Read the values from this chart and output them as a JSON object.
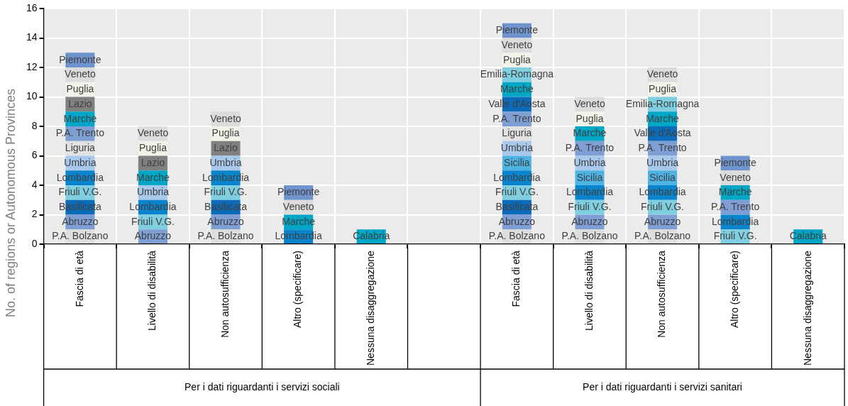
{
  "chart_data": {
    "type": "bar",
    "stacked": true,
    "ylabel": "No. of regions or Autonomous Provinces",
    "categories": [
      "Fascia di età",
      "Livello di disabilità",
      "Non autosufficienza",
      "Altro (specificare)",
      "Nessuna disaggregazione",
      null,
      "Fascia di età",
      "Livello di disabilità",
      "Non autosufficienza",
      "Altro (specificare)",
      "Nessuna disaggregazione"
    ],
    "ylim": [
      0,
      16
    ],
    "yticks": [
      0,
      2,
      4,
      6,
      8,
      10,
      12,
      14,
      16
    ],
    "grid": true,
    "legend": false,
    "annotations": [
      "Per i dati riguardanti i servizi sociali",
      "Per i dati riguardanti i servizi sanitari"
    ],
    "series": [
      {
        "name": "P.A. Bolzano",
        "color": "#dedede",
        "values": [
          1,
          null,
          1,
          null,
          null,
          null,
          1,
          1,
          1,
          null,
          null
        ]
      },
      {
        "name": "Abruzzo",
        "color": "#7f9fd4",
        "values": [
          1,
          1,
          1,
          null,
          null,
          null,
          1,
          1,
          1,
          null,
          null
        ]
      },
      {
        "name": "Basilicata",
        "color": "#0b6bb8",
        "values": [
          1,
          null,
          1,
          null,
          null,
          null,
          1,
          null,
          null,
          null,
          null
        ]
      },
      {
        "name": "Friuli V.G.",
        "color": "#7fcfe0",
        "values": [
          1,
          1,
          1,
          null,
          null,
          null,
          1,
          1,
          1,
          1,
          null
        ]
      },
      {
        "name": "Lombardia",
        "color": "#0a84cc",
        "values": [
          1,
          1,
          1,
          1,
          null,
          null,
          1,
          1,
          1,
          1,
          null
        ]
      },
      {
        "name": "Sicilia",
        "color": "#4cb3e3",
        "values": [
          null,
          null,
          null,
          null,
          null,
          null,
          1,
          1,
          1,
          null,
          null
        ]
      },
      {
        "name": "Umbria",
        "color": "#a8c8ec",
        "values": [
          1,
          1,
          1,
          null,
          null,
          null,
          1,
          1,
          1,
          null,
          null
        ]
      },
      {
        "name": "Liguria",
        "color": "#e2e2e2",
        "values": [
          1,
          null,
          null,
          null,
          null,
          null,
          1,
          null,
          null,
          null,
          null
        ]
      },
      {
        "name": "P.A. Trento",
        "color": "#7f9fd4",
        "values": [
          1,
          null,
          null,
          null,
          null,
          null,
          1,
          1,
          1,
          1,
          null
        ]
      },
      {
        "name": "Valle d'Aosta",
        "color": "#0b6bb8",
        "values": [
          null,
          null,
          null,
          null,
          null,
          null,
          1,
          null,
          1,
          null,
          null
        ]
      },
      {
        "name": "Marche",
        "color": "#00a6c6",
        "values": [
          1,
          1,
          null,
          1,
          null,
          null,
          1,
          1,
          1,
          1,
          null
        ]
      },
      {
        "name": "Emilia-Romagna",
        "color": "#7fcfe0",
        "values": [
          null,
          null,
          null,
          null,
          null,
          null,
          1,
          null,
          1,
          null,
          null
        ]
      },
      {
        "name": "Lazio",
        "color": "#808080",
        "values": [
          1,
          1,
          1,
          null,
          null,
          null,
          null,
          null,
          null,
          null,
          null
        ]
      },
      {
        "name": "Puglia",
        "color": "#f3f3ea",
        "values": [
          1,
          1,
          1,
          null,
          null,
          null,
          1,
          1,
          1,
          null,
          null
        ]
      },
      {
        "name": "Veneto",
        "color": "#dcdcdc",
        "values": [
          1,
          1,
          1,
          1,
          null,
          null,
          1,
          1,
          1,
          1,
          null
        ]
      },
      {
        "name": "Piemonte",
        "color": "#6f93cc",
        "values": [
          1,
          null,
          null,
          1,
          null,
          null,
          1,
          null,
          null,
          1,
          null
        ]
      },
      {
        "name": "Calabria",
        "color": "#00a6c6",
        "values": [
          null,
          null,
          null,
          null,
          1,
          null,
          null,
          null,
          null,
          null,
          1
        ]
      }
    ]
  }
}
